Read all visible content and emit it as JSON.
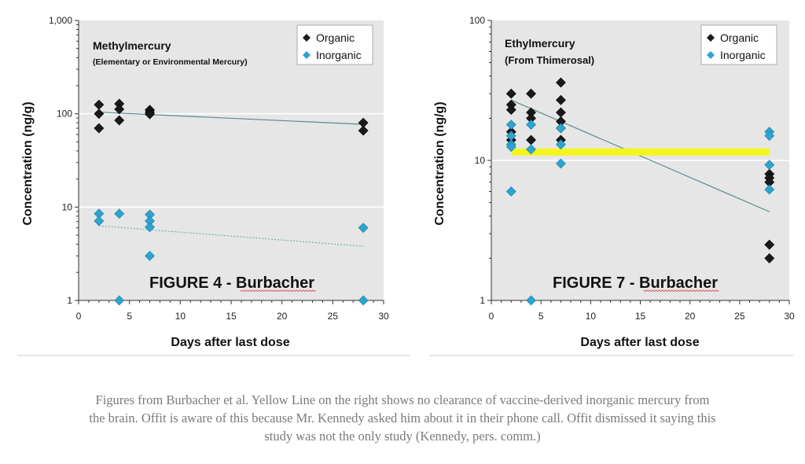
{
  "chart_data": [
    {
      "type": "scatter",
      "title": "Methylmercury",
      "subtitle": "(Elementary or Environmental Mercury)",
      "figure_label": "FIGURE 4 - Burbacher",
      "xlabel": "Days after last dose",
      "ylabel": "Concentration (ng/g)",
      "xlim": [
        0,
        30
      ],
      "ylim": [
        1,
        1000
      ],
      "yscale": "log",
      "xticks": [
        0,
        5,
        10,
        15,
        20,
        25,
        30
      ],
      "yticks": [
        1,
        10,
        100,
        1000
      ],
      "ytick_labels": [
        "1",
        "10",
        "100",
        "1,000"
      ],
      "legend": "top-right",
      "series": [
        {
          "name": "Organic",
          "color": "#1a1a1a",
          "points": [
            [
              2,
              125
            ],
            [
              2,
              100
            ],
            [
              2,
              70
            ],
            [
              4,
              128
            ],
            [
              4,
              112
            ],
            [
              4,
              85
            ],
            [
              7,
              110
            ],
            [
              7,
              104
            ],
            [
              7,
              99
            ],
            [
              28,
              80
            ],
            [
              28,
              66
            ]
          ],
          "trend": {
            "from": [
              2,
              104
            ],
            "to": [
              28,
              77
            ],
            "style": "solid"
          }
        },
        {
          "name": "Inorganic",
          "color": "#2fa3cf",
          "points": [
            [
              2,
              8.5
            ],
            [
              2,
              7.1
            ],
            [
              4,
              8.5
            ],
            [
              4,
              1.0
            ],
            [
              7,
              8.3
            ],
            [
              7,
              7.1
            ],
            [
              7,
              6.1
            ],
            [
              7,
              3.0
            ],
            [
              28,
              6.0
            ],
            [
              28,
              1.0
            ]
          ],
          "trend": {
            "from": [
              2,
              6.3
            ],
            "to": [
              28,
              3.8
            ],
            "style": "dotted"
          }
        }
      ]
    },
    {
      "type": "scatter",
      "title": "Ethylmercury",
      "subtitle": "(From Thimerosal)",
      "figure_label": "FIGURE 7 - Burbacher",
      "xlabel": "Days after last dose",
      "ylabel": "Concentration (ng/g)",
      "xlim": [
        0,
        30
      ],
      "ylim": [
        1,
        100
      ],
      "yscale": "log",
      "xticks": [
        0,
        5,
        10,
        15,
        20,
        25,
        30
      ],
      "yticks": [
        1,
        10,
        100
      ],
      "ytick_labels": [
        "1",
        "10",
        "100"
      ],
      "legend": "top-right",
      "series": [
        {
          "name": "Organic",
          "color": "#1a1a1a",
          "points": [
            [
              2,
              30
            ],
            [
              2,
              25
            ],
            [
              2,
              23
            ],
            [
              2,
              16
            ],
            [
              2,
              14
            ],
            [
              4,
              30
            ],
            [
              4,
              22
            ],
            [
              4,
              20
            ],
            [
              4,
              14
            ],
            [
              7,
              36
            ],
            [
              7,
              27
            ],
            [
              7,
              22
            ],
            [
              7,
              19
            ],
            [
              7,
              17
            ],
            [
              7,
              14
            ],
            [
              28,
              8
            ],
            [
              28,
              7.5
            ],
            [
              28,
              7
            ],
            [
              28,
              2.5
            ],
            [
              28,
              2.0
            ]
          ],
          "trend": {
            "from": [
              2,
              27
            ],
            "to": [
              28,
              4.3
            ],
            "style": "solid"
          }
        },
        {
          "name": "Inorganic",
          "color": "#2fa3cf",
          "points": [
            [
              2,
              18
            ],
            [
              2,
              15
            ],
            [
              2,
              13
            ],
            [
              2,
              12.5
            ],
            [
              2,
              6
            ],
            [
              4,
              18
            ],
            [
              4,
              12
            ],
            [
              4,
              1.0
            ],
            [
              7,
              17
            ],
            [
              7,
              13
            ],
            [
              7,
              9.5
            ],
            [
              28,
              16
            ],
            [
              28,
              15
            ],
            [
              28,
              9.3
            ],
            [
              28,
              6.2
            ]
          ],
          "highlight": {
            "from": [
              2,
              11.5
            ],
            "to": [
              28,
              11.5
            ],
            "color": "#f5f51e"
          }
        }
      ]
    }
  ],
  "caption": [
    "Figures from Burbacher et al. Yellow Line on the right shows no clearance of vaccine-derived inorganic mercury from",
    "the brain. Offit is aware of this because Mr. Kennedy asked him about it in their phone call. Offit dismissed it saying this",
    "study was not the only study (Kennedy, pers. comm.)"
  ]
}
